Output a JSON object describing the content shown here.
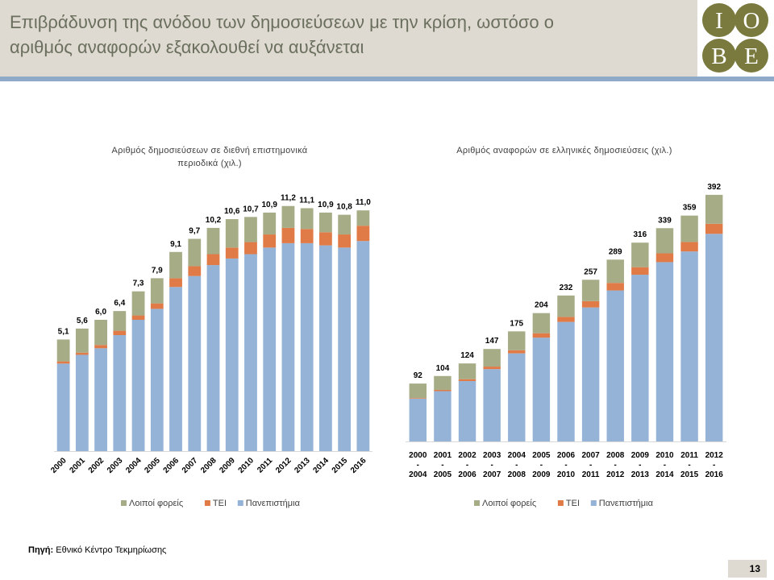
{
  "header": {
    "title_line1": "Επιβράδυνση της ανόδου των δημοσιεύσεων με την κρίση, ωστόσο ο",
    "title_line2": "αριθμός αναφορών εξακολουθεί να αυξάνεται",
    "logo_letters": [
      "I",
      "O",
      "B",
      "E"
    ]
  },
  "colors": {
    "header_bg": "#dedad1",
    "title_text": "#6b6f5e",
    "rule": "#8fa9c9",
    "logo_circle": "#7a7a3e",
    "series_universities": "#95b3d7",
    "series_tei": "#e07b48",
    "series_others": "#a6ac86"
  },
  "chart_data": [
    {
      "type": "bar",
      "stacked": true,
      "title_line1": "Αριθμός δημοσιεύσεων σε διεθνή επιστημονικά",
      "title_line2": "περιοδικά (χιλ.)",
      "categories": [
        "2000",
        "2001",
        "2002",
        "2003",
        "2004",
        "2005",
        "2006",
        "2007",
        "2008",
        "2009",
        "2010",
        "2011",
        "2012",
        "2013",
        "2014",
        "2015",
        "2016"
      ],
      "totals_labels": [
        "5,1",
        "5,6",
        "6,0",
        "6,4",
        "7,3",
        "7,9",
        "9,1",
        "9,7",
        "10,2",
        "10,6",
        "10,7",
        "10,9",
        "11,2",
        "11,1",
        "10,9",
        "10,8",
        "11,0"
      ],
      "series": [
        {
          "name": "Πανεπιστήμια",
          "values": [
            4.0,
            4.4,
            4.7,
            5.3,
            6.0,
            6.5,
            7.5,
            8.0,
            8.5,
            8.8,
            9.0,
            9.3,
            9.5,
            9.5,
            9.4,
            9.3,
            9.6
          ]
        },
        {
          "name": "ΤΕΙ",
          "values": [
            0.1,
            0.1,
            0.15,
            0.2,
            0.2,
            0.25,
            0.4,
            0.45,
            0.5,
            0.5,
            0.55,
            0.6,
            0.7,
            0.65,
            0.6,
            0.6,
            0.7
          ]
        },
        {
          "name": "Λοιποί φορείς",
          "values": [
            1.0,
            1.1,
            1.15,
            0.9,
            1.1,
            1.15,
            1.2,
            1.25,
            1.2,
            1.3,
            1.15,
            1.0,
            1.0,
            0.95,
            0.9,
            0.9,
            0.7
          ]
        }
      ],
      "legend": [
        "Λοιποί φορείς",
        "ΤΕΙ",
        "Πανεπιστήμια"
      ],
      "legend_position": "bottom",
      "ylim": [
        0,
        12
      ],
      "grid": false
    },
    {
      "type": "bar",
      "stacked": true,
      "title_line1": "Αριθμός αναφορών σε ελληνικές δημοσιεύσεις (χιλ.)",
      "categories": [
        [
          "2000",
          "-",
          "2004"
        ],
        [
          "2001",
          "-",
          "2005"
        ],
        [
          "2002",
          "-",
          "2006"
        ],
        [
          "2003",
          "-",
          "2007"
        ],
        [
          "2004",
          "-",
          "2008"
        ],
        [
          "2005",
          "-",
          "2009"
        ],
        [
          "2006",
          "-",
          "2010"
        ],
        [
          "2007",
          "-",
          "2011"
        ],
        [
          "2008",
          "-",
          "2012"
        ],
        [
          "2009",
          "-",
          "2013"
        ],
        [
          "2010",
          "-",
          "2014"
        ],
        [
          "2011",
          "-",
          "2015"
        ],
        [
          "2012",
          "-",
          "2016"
        ]
      ],
      "totals_labels": [
        "92",
        "104",
        "124",
        "147",
        "175",
        "204",
        "232",
        "257",
        "289",
        "316",
        "339",
        "359",
        "392"
      ],
      "series": [
        {
          "name": "Πανεπιστήμια",
          "values": [
            68,
            80,
            96,
            115,
            140,
            165,
            190,
            213,
            240,
            265,
            285,
            302,
            330
          ]
        },
        {
          "name": "ΤΕΙ",
          "values": [
            1,
            2,
            3,
            4,
            5,
            7,
            8,
            10,
            12,
            12,
            14,
            15,
            16
          ]
        },
        {
          "name": "Λοιποί φορείς",
          "values": [
            23,
            22,
            25,
            28,
            30,
            32,
            34,
            34,
            37,
            39,
            40,
            42,
            46
          ]
        }
      ],
      "legend": [
        "Λοιποί φορείς",
        "ΤΕΙ",
        "Πανεπιστήμια"
      ],
      "legend_position": "bottom",
      "ylim": [
        0,
        420
      ],
      "grid": false
    }
  ],
  "footer": {
    "source_label": "Πηγή:",
    "source_text": "Εθνικό Κέντρο Τεκμηρίωσης",
    "page_number": "13"
  }
}
